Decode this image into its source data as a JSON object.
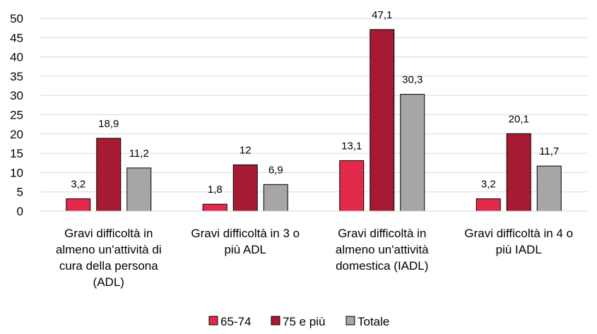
{
  "chart_data": {
    "type": "bar",
    "title": "",
    "xlabel": "",
    "ylabel": "",
    "ylim": [
      0,
      50
    ],
    "yticks": [
      0,
      5,
      10,
      15,
      20,
      25,
      30,
      35,
      40,
      45,
      50
    ],
    "categories": [
      [
        "Gravi difficoltà in",
        "almeno un'attività di",
        "cura della persona",
        "(ADL)"
      ],
      [
        "Gravi difficoltà in 3 o",
        "più ADL"
      ],
      [
        "Gravi difficoltà in",
        "almeno un'attività",
        "domestica (IADL)"
      ],
      [
        "Gravi difficoltà in 4 o",
        "più IADL"
      ]
    ],
    "series": [
      {
        "name": "65-74",
        "color": "#e3294a",
        "values": [
          3.2,
          1.8,
          13.1,
          3.2
        ],
        "labels": [
          "3,2",
          "1,8",
          "13,1",
          "3,2"
        ]
      },
      {
        "name": "75 e più",
        "color": "#a61a33",
        "values": [
          18.9,
          12,
          47.1,
          20.1
        ],
        "labels": [
          "18,9",
          "12",
          "47,1",
          "20,1"
        ]
      },
      {
        "name": "Totale",
        "color": "#a6a6a6",
        "values": [
          11.2,
          6.9,
          30.3,
          11.7
        ],
        "labels": [
          "11,2",
          "6,9",
          "30,3",
          "11,7"
        ]
      }
    ],
    "grid": true,
    "legend_position": "bottom"
  }
}
